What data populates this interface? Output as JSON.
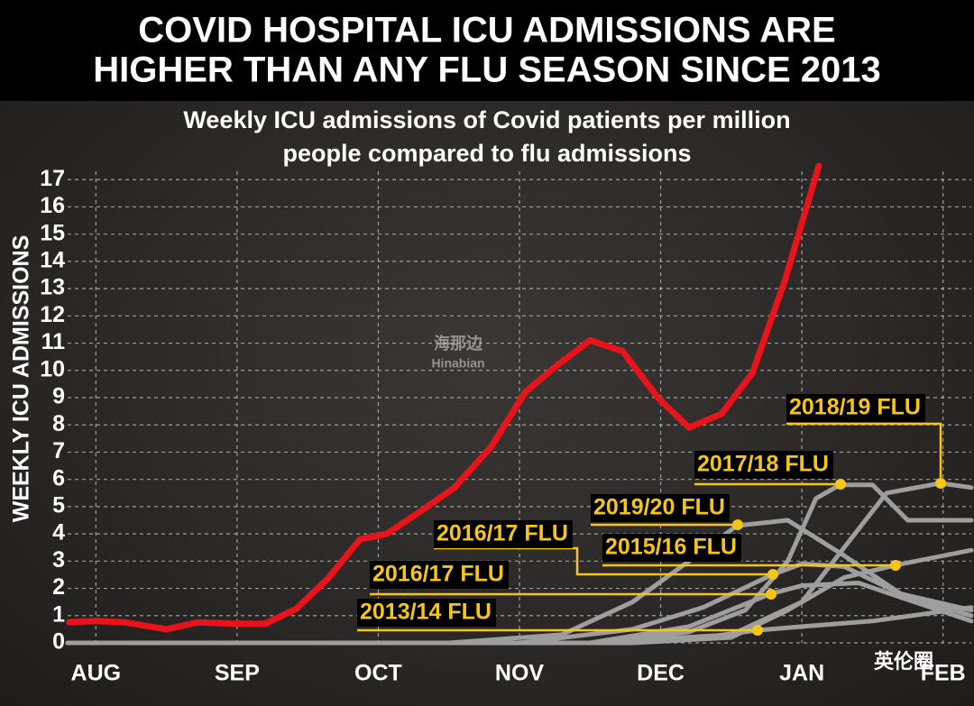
{
  "chart_data": {
    "type": "line",
    "title": [
      "COVID HOSPITAL ICU ADMISSIONS ARE",
      "HIGHER THAN ANY FLU SEASON SINCE 2013"
    ],
    "subtitle": [
      "Weekly ICU admissions of Covid patients per million",
      "people compared to flu admissions"
    ],
    "y_label": "WEEKLY ICU ADMISSIONS",
    "watermarks": [
      "海那边",
      "Hinabian",
      "英伦圈"
    ],
    "xlim": [
      -0.2,
      6.2
    ],
    "ylim": [
      0,
      18
    ],
    "xticks": [
      {
        "value": 0,
        "label": "AUG"
      },
      {
        "value": 1,
        "label": "SEP"
      },
      {
        "value": 2,
        "label": "OCT"
      },
      {
        "value": 3,
        "label": "NOV"
      },
      {
        "value": 4,
        "label": "DEC"
      },
      {
        "value": 5,
        "label": "JAN"
      },
      {
        "value": 6,
        "label": "FEB"
      }
    ],
    "yticks": [
      0,
      1,
      2,
      3,
      4,
      5,
      6,
      7,
      8,
      9,
      10,
      11,
      12,
      13,
      14,
      15,
      16,
      17
    ],
    "grid": true,
    "series": [
      {
        "color": "#9e9e9e",
        "x": [
          -0.2,
          3.5,
          4.5,
          5.0,
          5.3,
          5.6,
          5.98,
          6.2
        ],
        "values": [
          0,
          0,
          0.3,
          1.5,
          3.5,
          5.5,
          5.86,
          5.7
        ],
        "name": "2018/19 FLU"
      },
      {
        "color": "#9e9e9e",
        "x": [
          -0.2,
          3.5,
          4.2,
          4.6,
          4.9,
          5.1,
          5.27,
          5.5,
          5.75,
          6.2
        ],
        "values": [
          0,
          0,
          0.4,
          1.2,
          3,
          5.3,
          5.8,
          5.8,
          4.5,
          4.5
        ],
        "name": "2017/18 FLU"
      },
      {
        "color": "#9e9e9e",
        "x": [
          -0.2,
          2.5,
          3.3,
          3.8,
          4.2,
          4.54,
          4.9,
          5.3,
          5.7,
          6.2
        ],
        "values": [
          0,
          0,
          0.3,
          1.5,
          3.0,
          4.3,
          4.5,
          3.2,
          1.8,
          1.0
        ],
        "name": "2019/20 FLU"
      },
      {
        "color": "#9e9e9e",
        "x": [
          -0.2,
          3.0,
          3.8,
          4.3,
          4.79,
          5.0,
          5.3,
          5.7,
          6.2
        ],
        "values": [
          0,
          0,
          0.5,
          1.3,
          2.5,
          2.9,
          2.8,
          1.8,
          1.2
        ],
        "name": "2016/17 FLU"
      },
      {
        "color": "#9e9e9e",
        "x": [
          -0.2,
          3.8,
          4.5,
          4.9,
          5.3,
          5.66,
          6.2
        ],
        "values": [
          0,
          0,
          0.2,
          1.2,
          2.4,
          2.85,
          3.4
        ],
        "name": "2015/16 FLU"
      },
      {
        "color": "#9e9e9e",
        "x": [
          -0.2,
          3.5,
          4.2,
          4.78,
          5.0,
          5.4,
          5.8,
          6.2
        ],
        "values": [
          0,
          0,
          0.6,
          1.8,
          2.1,
          2.2,
          1.5,
          0.8
        ],
        "name": "2016/17 FLU"
      },
      {
        "color": "#9e9e9e",
        "x": [
          -0.2,
          3.8,
          4.3,
          4.68,
          5.0,
          5.5,
          6.2
        ],
        "values": [
          0,
          0,
          0.2,
          0.46,
          0.6,
          0.8,
          1.3
        ],
        "name": "2013/14 FLU"
      },
      {
        "color": "#e8141b",
        "x": [
          -0.19,
          0,
          0.21,
          0.5,
          0.72,
          1,
          1.2,
          1.42,
          1.65,
          1.87,
          2.06,
          2.32,
          2.54,
          2.8,
          3.04,
          3.27,
          3.5,
          3.73,
          3.98,
          4.2,
          4.43,
          4.65,
          4.88,
          5.12
        ],
        "values": [
          0.76,
          0.8,
          0.75,
          0.5,
          0.75,
          0.7,
          0.7,
          1.25,
          2.4,
          3.8,
          4.0,
          4.9,
          5.7,
          7.2,
          9.2,
          10.2,
          11.1,
          10.7,
          9.0,
          7.9,
          8.4,
          9.9,
          13.3,
          17.5
        ]
      }
    ]
  }
}
